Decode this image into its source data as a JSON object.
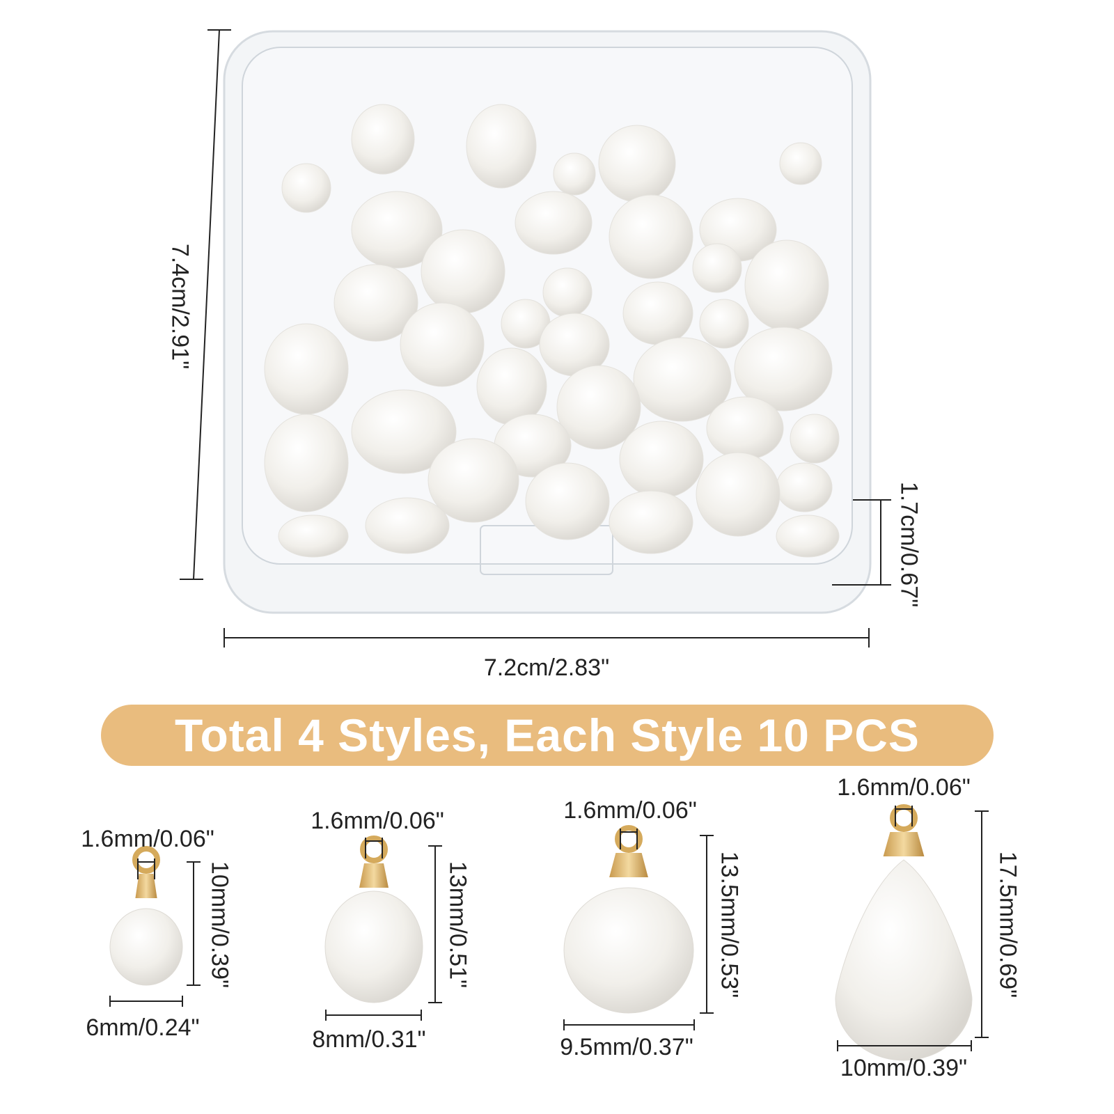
{
  "box": {
    "height_label": "7.4cm/2.91\"",
    "depth_label": "1.7cm/0.67\"",
    "width_label": "7.2cm/2.83\""
  },
  "banner": {
    "text": "Total 4 Styles, Each Style 10 PCS",
    "color": "#E9BC7E"
  },
  "styles": [
    {
      "hole": "1.6mm/0.06\"",
      "height": "10mm/0.39\"",
      "width": "6mm/0.24\"",
      "shape": "round"
    },
    {
      "hole": "1.6mm/0.06\"",
      "height": "13mm/0.51\"",
      "width": "8mm/0.31\"",
      "shape": "oval"
    },
    {
      "hole": "1.6mm/0.06\"",
      "height": "13.5mm/0.53\"",
      "width": "9.5mm/0.37\"",
      "shape": "round"
    },
    {
      "hole": "1.6mm/0.06\"",
      "height": "17.5mm/0.69\"",
      "width": "10mm/0.39\"",
      "shape": "teardrop"
    }
  ],
  "colors": {
    "gold": "#D9B168",
    "pearl": "#F4F2EE",
    "line": "#222222"
  }
}
